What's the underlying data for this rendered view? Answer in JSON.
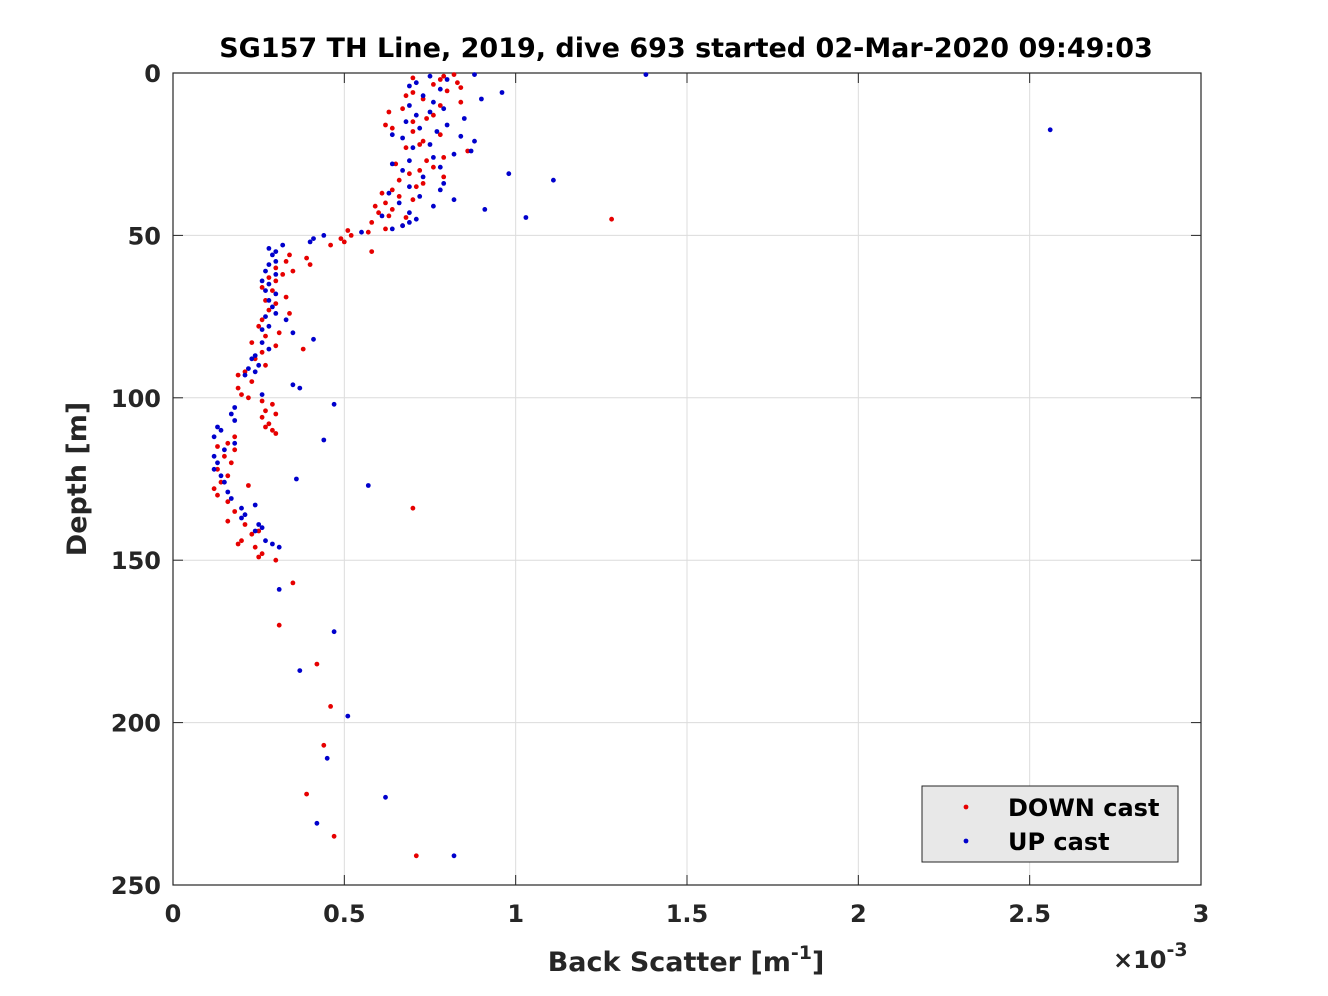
{
  "chart_data": {
    "type": "scatter",
    "title": "SG157 TH Line, 2019, dive 693 started 02-Mar-2020 09:49:03",
    "xlabel_main": "Back Scatter [m",
    "xlabel_sup": "-1",
    "xlabel_close": "]",
    "ylabel": "Depth [m]",
    "x_multiplier_prefix": "×10",
    "x_multiplier_exp": "-3",
    "xlim": [
      0,
      3
    ],
    "ylim": [
      0,
      250
    ],
    "y_reversed": true,
    "grid": true,
    "x_ticks": [
      0,
      0.5,
      1,
      1.5,
      2,
      2.5,
      3
    ],
    "x_tick_labels": [
      "0",
      "0.5",
      "1",
      "1.5",
      "2",
      "2.5",
      "3"
    ],
    "y_ticks": [
      0,
      50,
      100,
      150,
      200,
      250
    ],
    "y_tick_labels": [
      "0",
      "50",
      "100",
      "150",
      "200",
      "250"
    ],
    "legend_position": "bottom-right",
    "series": [
      {
        "name": "DOWN cast",
        "color": "#e60000",
        "points": [
          [
            0.82,
            0.5
          ],
          [
            0.79,
            1
          ],
          [
            0.7,
            1.5
          ],
          [
            0.78,
            2
          ],
          [
            0.83,
            3
          ],
          [
            0.76,
            3.5
          ],
          [
            0.84,
            4.5
          ],
          [
            0.8,
            5.5
          ],
          [
            0.7,
            6
          ],
          [
            0.68,
            7
          ],
          [
            0.73,
            8
          ],
          [
            0.84,
            9
          ],
          [
            0.78,
            10
          ],
          [
            0.67,
            11
          ],
          [
            0.63,
            12
          ],
          [
            0.76,
            13
          ],
          [
            0.74,
            14
          ],
          [
            0.7,
            15
          ],
          [
            0.62,
            16
          ],
          [
            0.64,
            17
          ],
          [
            0.7,
            18
          ],
          [
            0.78,
            19
          ],
          [
            0.73,
            21
          ],
          [
            0.72,
            22
          ],
          [
            0.68,
            23
          ],
          [
            0.86,
            24
          ],
          [
            0.79,
            26
          ],
          [
            0.74,
            27
          ],
          [
            0.65,
            28
          ],
          [
            0.76,
            29
          ],
          [
            0.72,
            30
          ],
          [
            0.69,
            31
          ],
          [
            0.79,
            32
          ],
          [
            0.66,
            33
          ],
          [
            0.73,
            34
          ],
          [
            0.71,
            35
          ],
          [
            0.64,
            36
          ],
          [
            0.61,
            37
          ],
          [
            0.66,
            38
          ],
          [
            0.7,
            39
          ],
          [
            0.62,
            40
          ],
          [
            0.59,
            41
          ],
          [
            0.64,
            42
          ],
          [
            0.6,
            43
          ],
          [
            0.63,
            44
          ],
          [
            0.68,
            44.5
          ],
          [
            1.28,
            45
          ],
          [
            0.58,
            46
          ],
          [
            0.67,
            47
          ],
          [
            0.62,
            48
          ],
          [
            0.51,
            48.5
          ],
          [
            0.57,
            49
          ],
          [
            0.52,
            50
          ],
          [
            0.49,
            51
          ],
          [
            0.5,
            52
          ],
          [
            0.46,
            53
          ],
          [
            0.58,
            55
          ],
          [
            0.34,
            56
          ],
          [
            0.39,
            57
          ],
          [
            0.33,
            58
          ],
          [
            0.4,
            59
          ],
          [
            0.3,
            60
          ],
          [
            0.35,
            61
          ],
          [
            0.32,
            62
          ],
          [
            0.28,
            63
          ],
          [
            0.3,
            64
          ],
          [
            0.26,
            66
          ],
          [
            0.29,
            67
          ],
          [
            0.33,
            69
          ],
          [
            0.27,
            70
          ],
          [
            0.3,
            71
          ],
          [
            0.28,
            73
          ],
          [
            0.34,
            74
          ],
          [
            0.26,
            76
          ],
          [
            0.25,
            78
          ],
          [
            0.31,
            80
          ],
          [
            0.27,
            81
          ],
          [
            0.23,
            83
          ],
          [
            0.3,
            84
          ],
          [
            0.38,
            85
          ],
          [
            0.26,
            86
          ],
          [
            0.24,
            88
          ],
          [
            0.27,
            90
          ],
          [
            0.21,
            92
          ],
          [
            0.19,
            93
          ],
          [
            0.23,
            95
          ],
          [
            0.19,
            97
          ],
          [
            0.2,
            99
          ],
          [
            0.22,
            100
          ],
          [
            0.26,
            101
          ],
          [
            0.29,
            102
          ],
          [
            0.27,
            104
          ],
          [
            0.3,
            105
          ],
          [
            0.26,
            106
          ],
          [
            0.28,
            108
          ],
          [
            0.27,
            109
          ],
          [
            0.29,
            110
          ],
          [
            0.3,
            111
          ],
          [
            0.18,
            112
          ],
          [
            0.16,
            114
          ],
          [
            0.13,
            115
          ],
          [
            0.18,
            116
          ],
          [
            0.15,
            118
          ],
          [
            0.17,
            120
          ],
          [
            0.13,
            122
          ],
          [
            0.16,
            124
          ],
          [
            0.14,
            126
          ],
          [
            0.22,
            127
          ],
          [
            0.12,
            128
          ],
          [
            0.13,
            130
          ],
          [
            0.16,
            132
          ],
          [
            0.7,
            134
          ],
          [
            0.18,
            135
          ],
          [
            0.16,
            138
          ],
          [
            0.21,
            139
          ],
          [
            0.25,
            141
          ],
          [
            0.23,
            142
          ],
          [
            0.2,
            144
          ],
          [
            0.19,
            145
          ],
          [
            0.24,
            146
          ],
          [
            0.26,
            148
          ],
          [
            0.25,
            149
          ],
          [
            0.3,
            150
          ],
          [
            0.35,
            157
          ],
          [
            0.31,
            170
          ],
          [
            0.42,
            182
          ],
          [
            0.46,
            195
          ],
          [
            0.44,
            207
          ],
          [
            0.39,
            222
          ],
          [
            0.47,
            235
          ],
          [
            0.71,
            241
          ]
        ]
      },
      {
        "name": "UP cast",
        "color": "#0000cc",
        "points": [
          [
            0.88,
            0.5
          ],
          [
            1.38,
            0.5
          ],
          [
            0.75,
            1
          ],
          [
            0.8,
            2
          ],
          [
            0.71,
            3
          ],
          [
            0.69,
            4
          ],
          [
            0.78,
            5
          ],
          [
            0.96,
            6
          ],
          [
            0.73,
            7
          ],
          [
            0.9,
            8
          ],
          [
            0.76,
            9
          ],
          [
            0.69,
            10
          ],
          [
            0.79,
            11
          ],
          [
            0.75,
            12
          ],
          [
            0.71,
            13
          ],
          [
            0.85,
            14
          ],
          [
            0.68,
            15
          ],
          [
            0.8,
            16
          ],
          [
            0.72,
            17
          ],
          [
            0.77,
            18
          ],
          [
            0.64,
            19
          ],
          [
            0.84,
            19.5
          ],
          [
            2.56,
            17.5
          ],
          [
            0.67,
            20
          ],
          [
            0.88,
            21
          ],
          [
            0.75,
            22
          ],
          [
            0.7,
            23
          ],
          [
            0.87,
            24
          ],
          [
            0.82,
            25
          ],
          [
            0.76,
            26
          ],
          [
            0.69,
            27
          ],
          [
            0.64,
            28
          ],
          [
            0.78,
            29
          ],
          [
            0.67,
            30
          ],
          [
            0.98,
            31
          ],
          [
            0.73,
            32
          ],
          [
            1.11,
            33
          ],
          [
            0.79,
            34
          ],
          [
            0.69,
            35
          ],
          [
            0.78,
            36
          ],
          [
            0.63,
            37
          ],
          [
            0.72,
            38
          ],
          [
            0.82,
            39
          ],
          [
            0.66,
            40
          ],
          [
            0.76,
            41
          ],
          [
            0.91,
            42
          ],
          [
            0.69,
            43
          ],
          [
            0.61,
            44
          ],
          [
            1.03,
            44.5
          ],
          [
            0.71,
            45
          ],
          [
            0.69,
            46
          ],
          [
            0.67,
            47
          ],
          [
            0.64,
            48
          ],
          [
            0.55,
            49
          ],
          [
            0.44,
            50
          ],
          [
            0.41,
            51
          ],
          [
            0.4,
            52
          ],
          [
            0.32,
            53
          ],
          [
            0.28,
            54
          ],
          [
            0.3,
            55
          ],
          [
            0.29,
            56
          ],
          [
            0.3,
            58
          ],
          [
            0.28,
            59
          ],
          [
            0.27,
            61
          ],
          [
            0.3,
            62
          ],
          [
            0.26,
            64
          ],
          [
            0.28,
            65
          ],
          [
            0.27,
            67
          ],
          [
            0.3,
            68
          ],
          [
            0.28,
            70
          ],
          [
            0.29,
            72
          ],
          [
            0.3,
            74
          ],
          [
            0.27,
            75
          ],
          [
            0.33,
            76
          ],
          [
            0.28,
            78
          ],
          [
            0.26,
            79
          ],
          [
            0.35,
            80
          ],
          [
            0.41,
            82
          ],
          [
            0.26,
            83
          ],
          [
            0.28,
            85
          ],
          [
            0.24,
            87
          ],
          [
            0.23,
            88
          ],
          [
            0.25,
            90
          ],
          [
            0.22,
            91
          ],
          [
            0.24,
            92
          ],
          [
            0.21,
            93
          ],
          [
            0.35,
            96
          ],
          [
            0.37,
            97
          ],
          [
            0.26,
            99
          ],
          [
            0.47,
            102
          ],
          [
            0.18,
            103
          ],
          [
            0.17,
            105
          ],
          [
            0.18,
            107
          ],
          [
            0.13,
            109
          ],
          [
            0.14,
            110
          ],
          [
            0.12,
            112
          ],
          [
            0.44,
            113
          ],
          [
            0.18,
            114
          ],
          [
            0.15,
            116
          ],
          [
            0.12,
            118
          ],
          [
            0.13,
            120
          ],
          [
            0.12,
            122
          ],
          [
            0.14,
            124
          ],
          [
            0.36,
            125
          ],
          [
            0.15,
            126
          ],
          [
            0.57,
            127
          ],
          [
            0.16,
            129
          ],
          [
            0.17,
            131
          ],
          [
            0.24,
            133
          ],
          [
            0.2,
            134
          ],
          [
            0.21,
            136
          ],
          [
            0.2,
            137
          ],
          [
            0.25,
            139
          ],
          [
            0.26,
            140
          ],
          [
            0.24,
            141
          ],
          [
            0.27,
            144
          ],
          [
            0.29,
            145
          ],
          [
            0.31,
            146
          ],
          [
            0.31,
            159
          ],
          [
            0.47,
            172
          ],
          [
            0.37,
            184
          ],
          [
            0.51,
            198
          ],
          [
            0.45,
            211
          ],
          [
            0.62,
            223
          ],
          [
            0.42,
            231
          ],
          [
            0.82,
            241
          ]
        ]
      }
    ]
  }
}
